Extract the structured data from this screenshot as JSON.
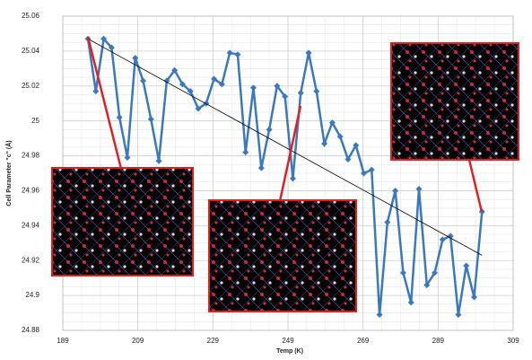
{
  "chart_data": {
    "type": "line",
    "x_label": "Temp (K)",
    "y_label": "Cell Parameter \"c\" (Å)",
    "x": [
      195.7,
      197.8,
      199.9,
      202.0,
      204.1,
      206.2,
      208.3,
      210.4,
      212.5,
      214.6,
      216.7,
      218.8,
      220.9,
      223.0,
      225.1,
      227.2,
      229.3,
      231.4,
      233.5,
      235.6,
      237.7,
      239.8,
      241.9,
      244.0,
      246.1,
      248.2,
      250.3,
      252.4,
      254.5,
      256.6,
      258.7,
      260.8,
      262.9,
      265.0,
      267.1,
      269.2,
      271.3,
      273.4,
      275.5,
      277.6,
      279.7,
      281.8,
      283.9,
      286.0,
      288.1,
      290.2,
      292.3,
      294.4,
      296.5,
      298.6,
      300.7
    ],
    "series": [
      {
        "color": "#3a78c0",
        "values": [
          25.047,
          25.017,
          25.047,
          25.042,
          25.002,
          24.979,
          25.036,
          25.023,
          25.001,
          24.977,
          25.023,
          25.029,
          25.021,
          25.017,
          25.007,
          25.01,
          25.024,
          25.021,
          25.039,
          25.038,
          24.982,
          25.019,
          24.973,
          24.995,
          25.02,
          25.014,
          24.967,
          25.016,
          25.039,
          25.017,
          24.987,
          24.999,
          24.991,
          24.978,
          24.986,
          24.97,
          24.972,
          24.889,
          24.942,
          24.96,
          24.913,
          24.896,
          24.961,
          24.906,
          24.913,
          24.932,
          24.934,
          24.889,
          24.917,
          24.899,
          24.948
        ]
      }
    ],
    "trendline": {
      "x": [
        195.7,
        300.7
      ],
      "values": [
        25.047,
        24.923
      ],
      "color": "#000000"
    },
    "xlim": [
      189,
      309
    ],
    "xticks": [
      189,
      209,
      229,
      249,
      269,
      289,
      309
    ],
    "ylim": [
      24.88,
      25.06
    ],
    "yticks": [
      24.88,
      24.9,
      24.92,
      24.94,
      24.96,
      24.98,
      25,
      25.02,
      25.04,
      25.06
    ],
    "grid": true,
    "minor_grid": {
      "x": 5,
      "y": 0.005
    }
  }
}
